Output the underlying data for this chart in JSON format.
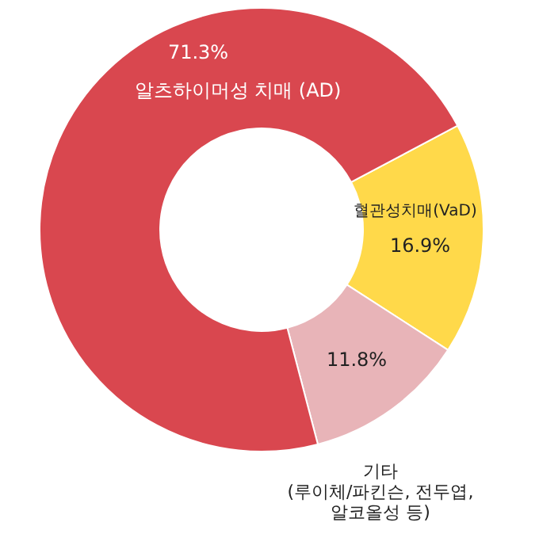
{
  "chart_data": {
    "type": "donut",
    "categories": [
      "혈관성치매(VaD)",
      "기타\n(루이체/파킨슨, 전두엽,\n알코올성 등)",
      "알츠하이머성 치매 (AD)"
    ],
    "values": [
      16.9,
      11.8,
      71.3
    ],
    "colors": [
      "#ffd94a",
      "#e8b4b8",
      "#d9474f"
    ],
    "value_labels": [
      "16.9%",
      "11.8%",
      "71.3%"
    ]
  }
}
